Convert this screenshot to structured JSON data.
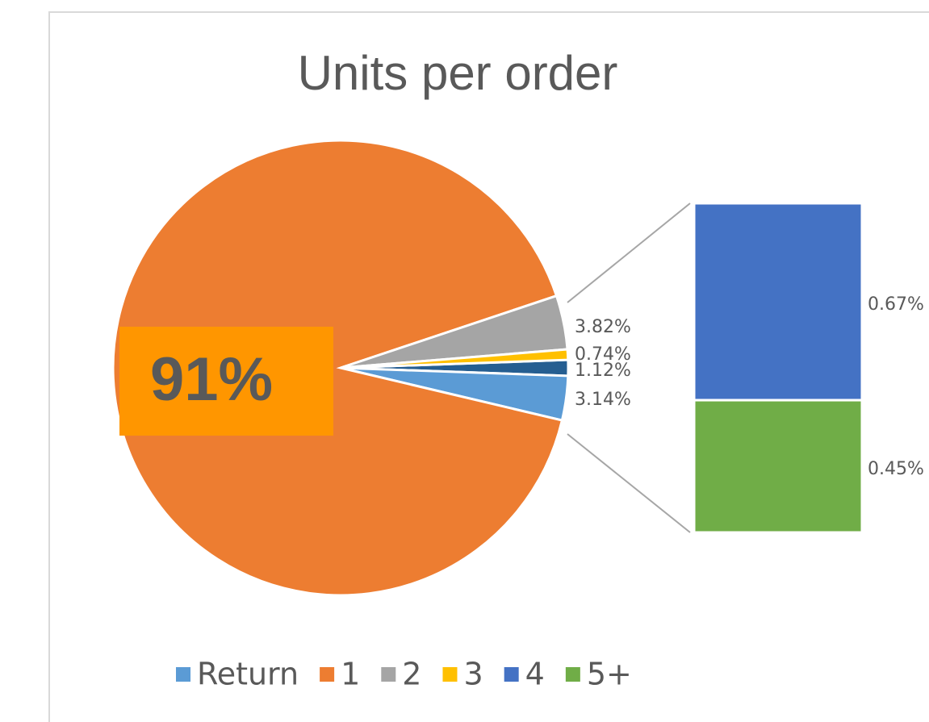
{
  "chart_data": {
    "type": "pie",
    "title": "Units per order",
    "categories": [
      "Return",
      "1",
      "2",
      "3",
      "4",
      "5+"
    ],
    "values": [
      3.14,
      91,
      3.82,
      0.74,
      0.67,
      0.45
    ],
    "value_labels": [
      "3.14%",
      "91%",
      "3.82%",
      "0.74%",
      "0.67%",
      "0.45%"
    ],
    "colors": [
      "#5b9bd5",
      "#ed7d31",
      "#a5a5a5",
      "#ffc000",
      "#4472c4",
      "#70ad47"
    ],
    "secondary_count": 2,
    "other": {
      "value": 1.12,
      "label": "1.12%",
      "color": "#255e91"
    },
    "legend": "bottom"
  }
}
